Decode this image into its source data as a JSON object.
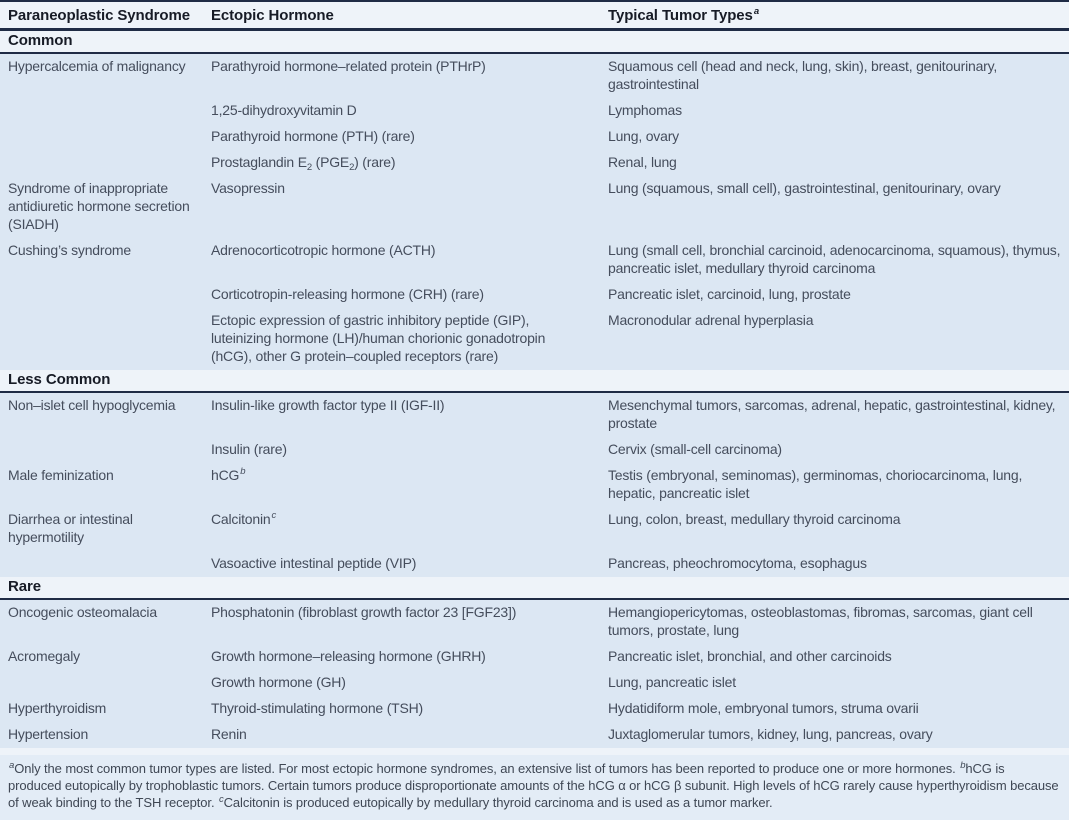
{
  "colors": {
    "navy": "#1f2b45",
    "pageBg": "#dce7f3",
    "band": "#eef3f9",
    "footBg": "#e3ecf6",
    "headText": "#171b26",
    "bodyText": "#454d5c",
    "footText": "#3f4754"
  },
  "table": {
    "columns": [
      "Paraneoplastic Syndrome",
      "Ectopic Hormone",
      [
        {
          "t": "Typical Tumor Types"
        },
        {
          "sup": "a"
        }
      ]
    ],
    "sections": [
      {
        "label": "Common",
        "rows": [
          {
            "syndrome": "Hypercalcemia of malignancy",
            "hormone": "Parathyroid hormone–related protein (PTHrP)",
            "tumors": "Squamous cell (head and neck, lung, skin), breast, genitourinary, gastrointestinal"
          },
          {
            "syndrome": "",
            "hormone": "1,25-dihydroxyvitamin D",
            "tumors": "Lymphomas"
          },
          {
            "syndrome": "",
            "hormone": "Parathyroid hormone (PTH) (rare)",
            "tumors": "Lung, ovary"
          },
          {
            "syndrome": "",
            "hormone": [
              {
                "t": "Prostaglandin E"
              },
              {
                "sub": "2"
              },
              {
                "t": " (PGE"
              },
              {
                "sub": "2"
              },
              {
                "t": ") (rare)"
              }
            ],
            "tumors": "Renal, lung"
          },
          {
            "syndrome": "Syndrome of inappropriate antidiuretic hormone secretion (SIADH)",
            "hormone": "Vasopressin",
            "tumors": "Lung (squamous, small cell), gastrointestinal, genitourinary, ovary"
          },
          {
            "syndrome": "Cushing’s syndrome",
            "hormone": "Adrenocorticotropic hormone (ACTH)",
            "tumors": "Lung (small cell, bronchial carcinoid, adenocarcinoma, squamous), thymus, pancreatic islet, medullary thyroid carcinoma"
          },
          {
            "syndrome": "",
            "hormone": "Corticotropin-releasing hormone (CRH) (rare)",
            "tumors": "Pancreatic islet, carcinoid, lung, prostate"
          },
          {
            "syndrome": "",
            "hormone": "Ectopic expression of gastric inhibitory peptide (GIP), luteinizing hormone (LH)/human chorionic gonadotropin (hCG), other G protein–coupled receptors (rare)",
            "tumors": "Macronodular adrenal hyperplasia"
          }
        ]
      },
      {
        "label": "Less Common",
        "rows": [
          {
            "syndrome": "Non–islet cell hypoglycemia",
            "hormone": "Insulin-like growth factor type II (IGF-II)",
            "tumors": "Mesenchymal tumors, sarcomas, adrenal, hepatic, gastrointestinal, kidney, prostate"
          },
          {
            "syndrome": "",
            "hormone": "Insulin (rare)",
            "tumors": "Cervix (small-cell carcinoma)"
          },
          {
            "syndrome": "Male feminization",
            "hormone": [
              {
                "t": "hCG"
              },
              {
                "sup": "b"
              }
            ],
            "tumors": "Testis (embryonal, seminomas), germinomas, choriocarcinoma, lung, hepatic, pancreatic islet"
          },
          {
            "syndrome": "Diarrhea or intestinal hypermotility",
            "hormone": [
              {
                "t": "Calcitonin"
              },
              {
                "sup": "c"
              }
            ],
            "tumors": "Lung, colon, breast, medullary thyroid carcinoma"
          },
          {
            "syndrome": "",
            "hormone": "Vasoactive intestinal peptide (VIP)",
            "tumors": "Pancreas, pheochromocytoma, esophagus"
          }
        ]
      },
      {
        "label": "Rare",
        "rows": [
          {
            "syndrome": "Oncogenic osteomalacia",
            "hormone": "Phosphatonin (fibroblast growth factor 23 [FGF23])",
            "tumors": "Hemangiopericytomas, osteoblastomas, fibromas, sarcomas, giant cell tumors, prostate, lung"
          },
          {
            "syndrome": "Acromegaly",
            "hormone": "Growth hormone–releasing hormone (GHRH)",
            "tumors": "Pancreatic islet, bronchial, and other carcinoids"
          },
          {
            "syndrome": "",
            "hormone": "Growth hormone (GH)",
            "tumors": "Lung, pancreatic islet"
          },
          {
            "syndrome": "Hyperthyroidism",
            "hormone": "Thyroid-stimulating hormone (TSH)",
            "tumors": "Hydatidiform mole, embryonal tumors, struma ovarii"
          },
          {
            "syndrome": "Hypertension",
            "hormone": "Renin",
            "tumors": "Juxtaglomerular tumors, kidney, lung, pancreas, ovary"
          }
        ]
      }
    ],
    "footnote": [
      {
        "sup": "a"
      },
      {
        "t": "Only the most common tumor types are listed. For most ectopic hormone syndromes, an extensive list of tumors has been reported to produce one or more hormones. "
      },
      {
        "sup": "b"
      },
      {
        "t": "hCG is produced eutopically by trophoblastic tumors. Certain tumors produce disproportionate amounts of the hCG α or hCG β subunit. High levels of hCG rarely cause hyperthyroidism because of weak binding to the TSH receptor. "
      },
      {
        "sup": "c"
      },
      {
        "t": "Calcitonin is produced eutopically by medullary thyroid carcinoma and is used as a tumor marker."
      }
    ]
  }
}
